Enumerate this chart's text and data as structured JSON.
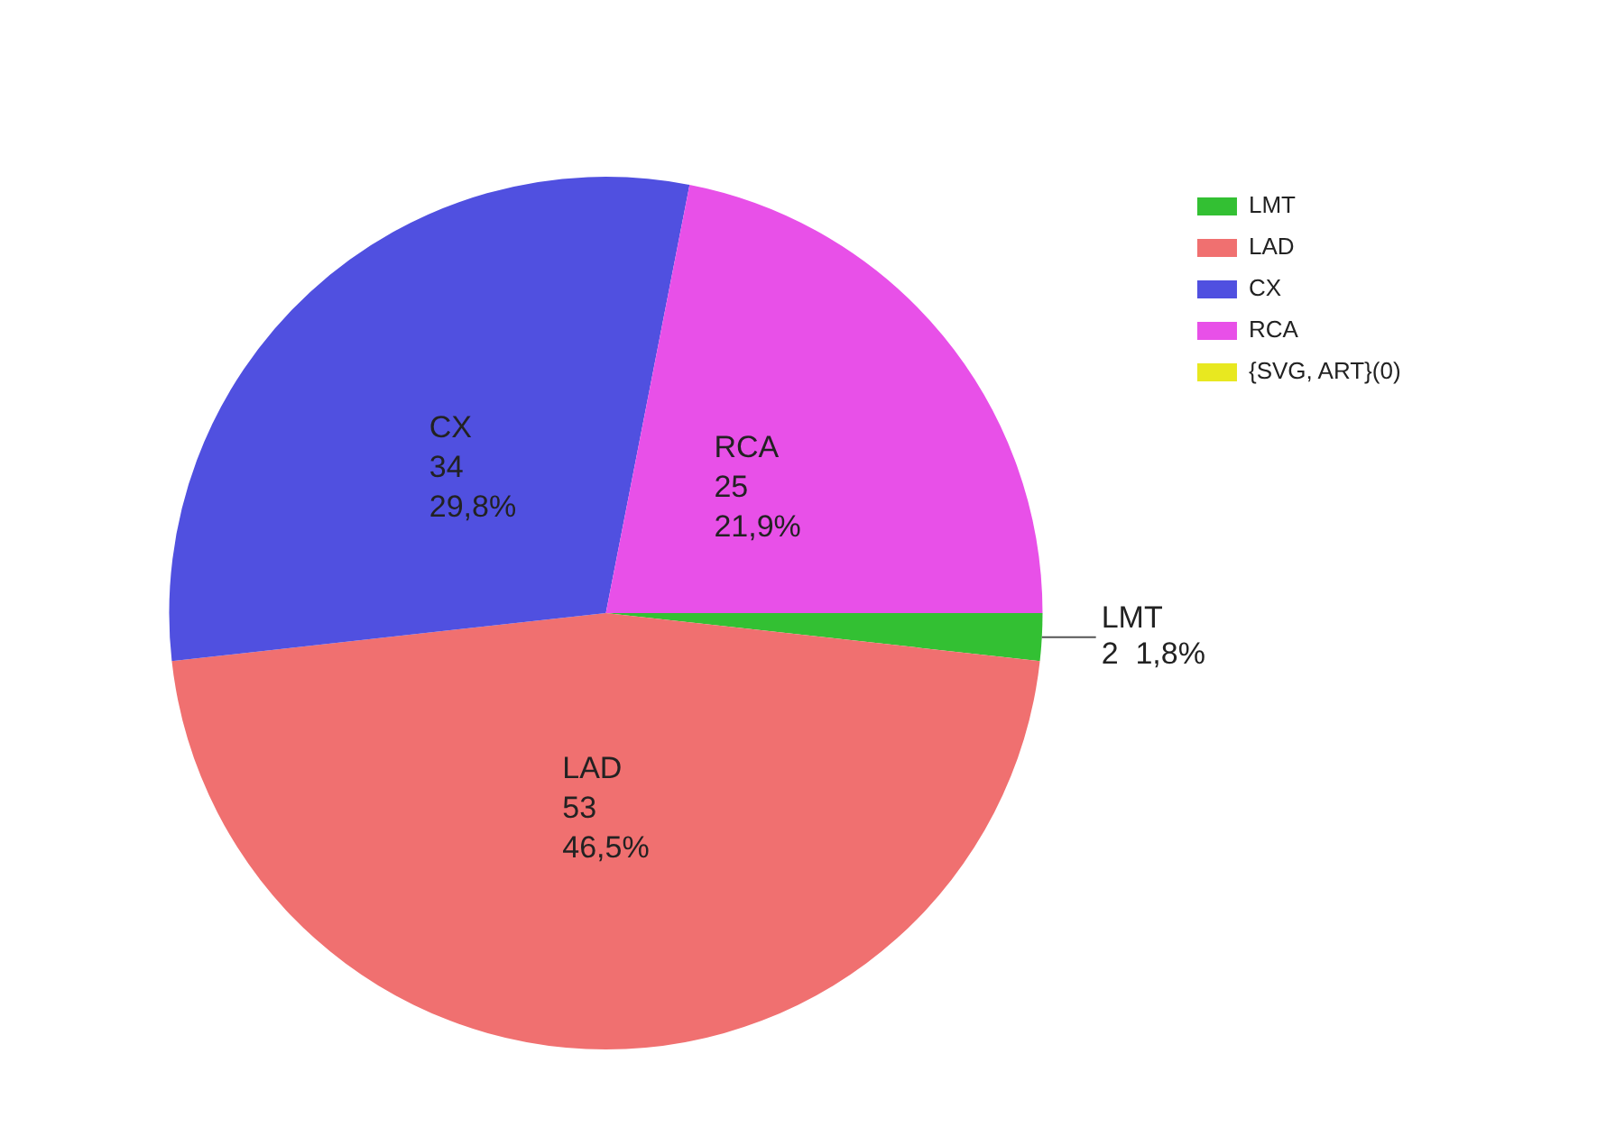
{
  "chart_data": {
    "type": "pie",
    "categories": [
      "LMT",
      "LAD",
      "CX",
      "RCA",
      "{SVG, ART}(0)"
    ],
    "values": [
      2,
      53,
      34,
      25,
      0
    ],
    "colors": [
      "#33c033",
      "#f07070",
      "#5050e0",
      "#e850e8",
      "#e8e820"
    ],
    "value_labels": [
      "2  1,8%",
      "53\n46,5%",
      "34\n29,8%",
      "25\n21,9%",
      null
    ],
    "legend": "top right"
  }
}
